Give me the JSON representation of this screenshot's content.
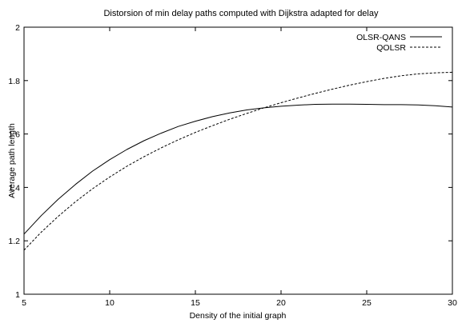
{
  "chart_data": {
    "type": "line",
    "title": "Distorsion of min delay paths computed with Dijkstra adapted for delay",
    "xlabel": "Density of the initial graph",
    "ylabel": "Average path length",
    "xlim": [
      5,
      30
    ],
    "ylim": [
      1,
      2
    ],
    "xticks": [
      "5",
      "10",
      "15",
      "20",
      "25",
      "30"
    ],
    "yticks": [
      "1",
      "1.2",
      "1.4",
      "1.6",
      "1.8",
      "2"
    ],
    "grid": false,
    "legend_position": "top-right",
    "x": [
      5,
      6,
      7,
      8,
      9,
      10,
      11,
      12,
      13,
      14,
      15,
      16,
      17,
      18,
      19,
      20,
      21,
      22,
      23,
      24,
      25,
      26,
      27,
      28,
      29,
      30
    ],
    "series": [
      {
        "name": "OLSR-QANS",
        "style": "solid",
        "color": "#000000",
        "values": [
          1.225,
          1.294,
          1.356,
          1.411,
          1.461,
          1.504,
          1.542,
          1.575,
          1.603,
          1.628,
          1.648,
          1.665,
          1.679,
          1.69,
          1.698,
          1.704,
          1.708,
          1.711,
          1.712,
          1.712,
          1.711,
          1.71,
          1.71,
          1.709,
          1.706,
          1.701
        ]
      },
      {
        "name": "QOLSR",
        "style": "dashed",
        "color": "#000000",
        "values": [
          1.165,
          1.232,
          1.292,
          1.346,
          1.395,
          1.439,
          1.479,
          1.515,
          1.548,
          1.578,
          1.606,
          1.631,
          1.655,
          1.677,
          1.698,
          1.717,
          1.735,
          1.752,
          1.768,
          1.783,
          1.796,
          1.808,
          1.818,
          1.825,
          1.829,
          1.831
        ]
      }
    ]
  }
}
